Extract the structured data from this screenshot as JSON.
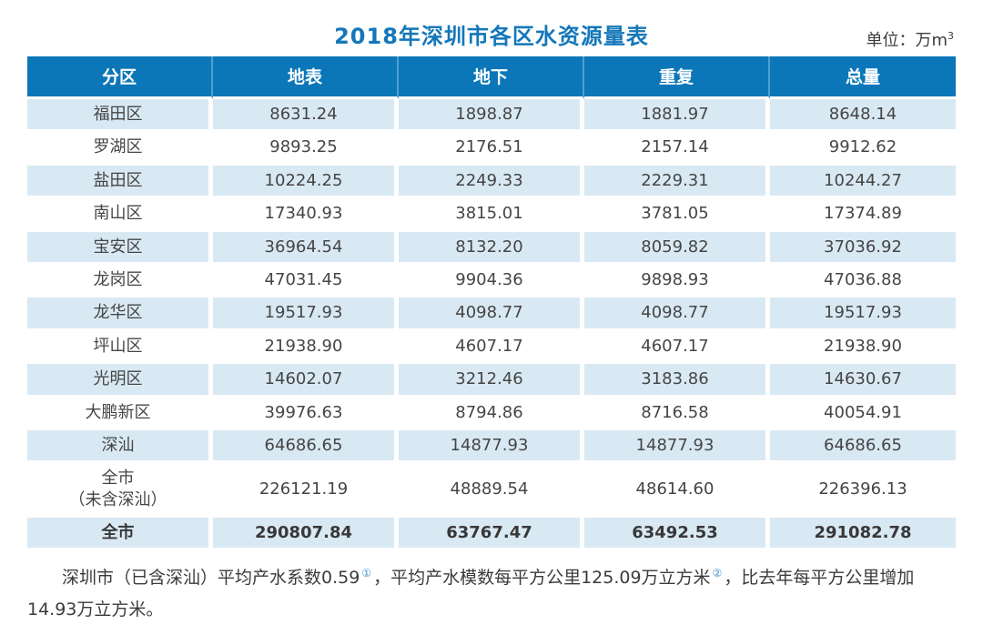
{
  "page": {
    "title": "2018年深圳市各区水资源量表",
    "unit": {
      "prefix": "单位：万m",
      "sup": "3"
    }
  },
  "chart_data": {
    "type": "table",
    "title": "2018年深圳市各区水资源量表",
    "unit": "万m³",
    "columns": [
      "分区",
      "地表",
      "地下",
      "重复",
      "总量"
    ],
    "rows": [
      {
        "cells": [
          "福田区",
          "8631.24",
          "1898.87",
          "1881.97",
          "8648.14"
        ]
      },
      {
        "cells": [
          "罗湖区",
          "9893.25",
          "2176.51",
          "2157.14",
          "9912.62"
        ]
      },
      {
        "cells": [
          "盐田区",
          "10224.25",
          "2249.33",
          "2229.31",
          "10244.27"
        ]
      },
      {
        "cells": [
          "南山区",
          "17340.93",
          "3815.01",
          "3781.05",
          "17374.89"
        ]
      },
      {
        "cells": [
          "宝安区",
          "36964.54",
          "8132.20",
          "8059.82",
          "37036.92"
        ]
      },
      {
        "cells": [
          "龙岗区",
          "47031.45",
          "9904.36",
          "9898.93",
          "47036.88"
        ]
      },
      {
        "cells": [
          "龙华区",
          "19517.93",
          "4098.77",
          "4098.77",
          "19517.93"
        ]
      },
      {
        "cells": [
          "坪山区",
          "21938.90",
          "4607.17",
          "4607.17",
          "21938.90"
        ]
      },
      {
        "cells": [
          "光明区",
          "14602.07",
          "3212.46",
          "3183.86",
          "14630.67"
        ]
      },
      {
        "cells": [
          "大鹏新区",
          "39976.63",
          "8794.86",
          "8716.58",
          "40054.91"
        ]
      },
      {
        "cells": [
          "深汕",
          "64686.65",
          "14877.93",
          "14877.93",
          "64686.65"
        ]
      },
      {
        "cells": [
          "全市\n（未含深汕）",
          "226121.19",
          "48889.54",
          "48614.60",
          "226396.13"
        ]
      },
      {
        "cells": [
          "全市",
          "290807.84",
          "63767.47",
          "63492.53",
          "291082.78"
        ]
      }
    ]
  },
  "footnote": {
    "part1": "深圳市（已含深汕）平均产水系数0.59",
    "ref1": "①",
    "part2": "，平均产水模数每平方公里125.09万立方米",
    "ref2": "②",
    "part3": "，比去年每平方公里增加14.93万立方米。"
  },
  "colors": {
    "header_bg": "#0c77b8",
    "header_divider": "#4ca0d0",
    "stripe_bg": "#d9e9f4",
    "title_text": "#1577b9",
    "header_text": "#ffffff",
    "body_text": "#454545",
    "ref_text": "#3f93cc"
  }
}
